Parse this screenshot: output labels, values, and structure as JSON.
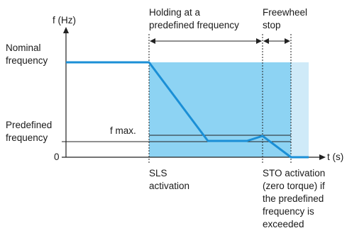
{
  "y_axis_label": "f (Hz)",
  "x_axis_label": "t (s)",
  "nominal_frequency_label": "Nominal\nfrequency",
  "predefined_frequency_label": "Predefined\nfrequency",
  "zero_label": "0",
  "fmax_label": "f max.",
  "holding_label": "Holding at a\npredefined frequency",
  "freewheel_label": "Freewheel\nstop",
  "sls_label": "SLS\nactivation",
  "sto_label": "STO activation\n(zero torque) if\nthe predefined\nfrequency is\nexceeded",
  "colors": {
    "curve": "#1b8fd6",
    "holding_fill": "#8dd3f3",
    "freewheel_fill": "#cfeaf8",
    "axis": "#222222"
  }
}
